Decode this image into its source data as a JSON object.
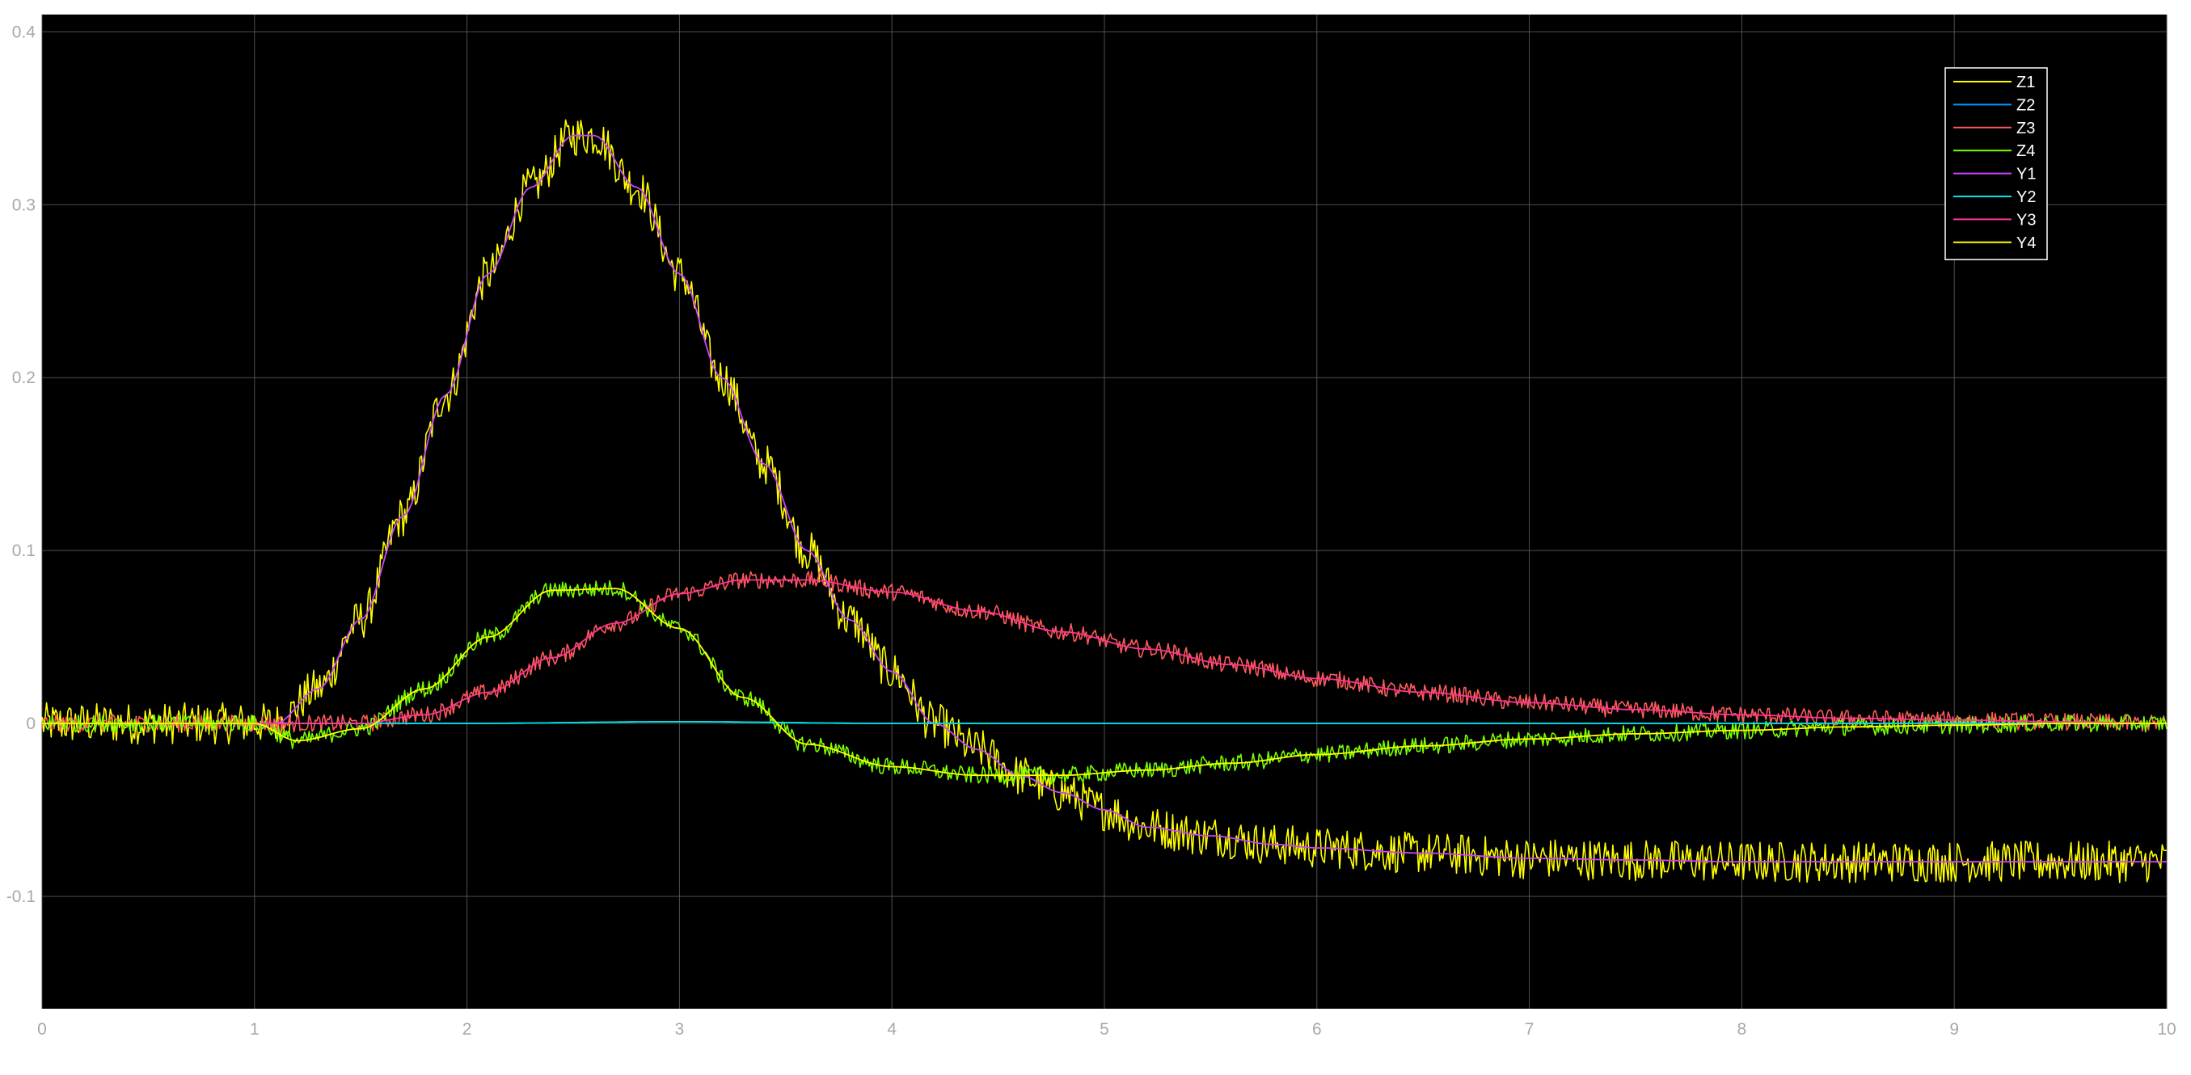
{
  "chart_data": {
    "type": "line",
    "title": "",
    "xlabel": "",
    "ylabel": "",
    "xlim": [
      0,
      10
    ],
    "ylim": [
      -0.165,
      0.41
    ],
    "grid": true,
    "legend_position": "top-right",
    "background_color": "#000000",
    "grid_color": "#505050",
    "tick_color": "#a8a8a8",
    "x_ticks": [
      0,
      1,
      2,
      3,
      4,
      5,
      6,
      7,
      8,
      9,
      10
    ],
    "x_tick_labels": [
      "0",
      "1",
      "2",
      "3",
      "4",
      "5",
      "6",
      "7",
      "8",
      "9",
      "10"
    ],
    "y_ticks": [
      -0.1,
      0,
      0.1,
      0.2,
      0.3,
      0.4
    ],
    "y_tick_labels": [
      "-0.1",
      "0",
      "0.1",
      "0.2",
      "0.3",
      "0.4"
    ],
    "series": [
      {
        "name": "Z1",
        "color": "#ffff00",
        "noisy": true,
        "x": [
          0,
          0.5,
          1.0,
          1.1,
          1.3,
          1.5,
          1.7,
          1.9,
          2.1,
          2.3,
          2.5,
          2.6,
          2.8,
          3.0,
          3.2,
          3.4,
          3.6,
          3.8,
          4.0,
          4.2,
          4.4,
          4.6,
          4.8,
          5.0,
          5.2,
          5.5,
          5.8,
          6.0,
          6.5,
          7.0,
          7.5,
          8.0,
          8.5,
          9.0,
          9.5,
          10.0
        ],
        "y": [
          0,
          0,
          0,
          0.0,
          0.02,
          0.06,
          0.12,
          0.19,
          0.26,
          0.31,
          0.34,
          0.34,
          0.31,
          0.26,
          0.2,
          0.15,
          0.1,
          0.06,
          0.03,
          0.0,
          -0.015,
          -0.03,
          -0.04,
          -0.05,
          -0.06,
          -0.065,
          -0.07,
          -0.072,
          -0.075,
          -0.078,
          -0.079,
          -0.08,
          -0.08,
          -0.08,
          -0.08,
          -0.08
        ]
      },
      {
        "name": "Z2",
        "color": "#0096ff",
        "noisy": false,
        "x": [
          0,
          1.0,
          2.0,
          3.0,
          4.0,
          5.0,
          6.0,
          7.0,
          8.0,
          9.0,
          10.0
        ],
        "y": [
          0,
          0,
          0,
          0.001,
          0,
          0,
          0,
          0,
          0,
          0,
          0
        ]
      },
      {
        "name": "Z3",
        "color": "#ff5a5a",
        "noisy": true,
        "x": [
          0,
          1.5,
          1.8,
          2.1,
          2.4,
          2.7,
          3.0,
          3.3,
          3.6,
          4.0,
          4.4,
          4.8,
          5.2,
          5.6,
          6.0,
          6.5,
          7.0,
          7.5,
          8.0,
          8.5,
          9.0,
          9.5,
          10.0
        ],
        "y": [
          0,
          0,
          0.005,
          0.018,
          0.038,
          0.058,
          0.075,
          0.083,
          0.083,
          0.076,
          0.065,
          0.053,
          0.043,
          0.034,
          0.026,
          0.018,
          0.012,
          0.008,
          0.005,
          0.003,
          0.002,
          0.001,
          0
        ]
      },
      {
        "name": "Z4",
        "color": "#78ff00",
        "noisy": true,
        "x": [
          0,
          1.0,
          1.2,
          1.5,
          1.8,
          2.1,
          2.4,
          2.7,
          3.0,
          3.3,
          3.6,
          4.0,
          4.4,
          4.8,
          5.2,
          5.6,
          6.0,
          6.5,
          7.0,
          7.5,
          8.0,
          8.5,
          9.0,
          9.5,
          10.0
        ],
        "y": [
          0,
          0,
          -0.01,
          -0.003,
          0.02,
          0.05,
          0.077,
          0.078,
          0.055,
          0.015,
          -0.012,
          -0.025,
          -0.03,
          -0.03,
          -0.027,
          -0.023,
          -0.018,
          -0.013,
          -0.009,
          -0.006,
          -0.004,
          -0.002,
          -0.001,
          0,
          0
        ]
      },
      {
        "name": "Y1",
        "color": "#cc44ff",
        "noisy": false,
        "x": [
          0,
          0.5,
          1.0,
          1.1,
          1.3,
          1.5,
          1.7,
          1.9,
          2.1,
          2.3,
          2.5,
          2.6,
          2.8,
          3.0,
          3.2,
          3.4,
          3.6,
          3.8,
          4.0,
          4.2,
          4.4,
          4.6,
          4.8,
          5.0,
          5.2,
          5.5,
          5.8,
          6.0,
          6.5,
          7.0,
          7.5,
          8.0,
          8.5,
          9.0,
          9.5,
          10.0
        ],
        "y": [
          0,
          0,
          0,
          0.0,
          0.02,
          0.06,
          0.12,
          0.19,
          0.26,
          0.31,
          0.34,
          0.34,
          0.31,
          0.26,
          0.2,
          0.15,
          0.1,
          0.06,
          0.03,
          0.0,
          -0.015,
          -0.03,
          -0.04,
          -0.05,
          -0.06,
          -0.065,
          -0.07,
          -0.072,
          -0.075,
          -0.078,
          -0.079,
          -0.08,
          -0.08,
          -0.08,
          -0.08,
          -0.08
        ]
      },
      {
        "name": "Y2",
        "color": "#00e5e5",
        "noisy": false,
        "x": [
          0,
          1.0,
          2.0,
          3.0,
          4.0,
          5.0,
          6.0,
          7.0,
          8.0,
          9.0,
          10.0
        ],
        "y": [
          0,
          0,
          0,
          0.001,
          0,
          0,
          0,
          0,
          0,
          0,
          0
        ]
      },
      {
        "name": "Y3",
        "color": "#ff3399",
        "noisy": false,
        "x": [
          0,
          1.5,
          1.8,
          2.1,
          2.4,
          2.7,
          3.0,
          3.3,
          3.6,
          4.0,
          4.4,
          4.8,
          5.2,
          5.6,
          6.0,
          6.5,
          7.0,
          7.5,
          8.0,
          8.5,
          9.0,
          9.5,
          10.0
        ],
        "y": [
          0,
          0,
          0.005,
          0.018,
          0.038,
          0.058,
          0.075,
          0.083,
          0.083,
          0.076,
          0.065,
          0.053,
          0.043,
          0.034,
          0.026,
          0.018,
          0.012,
          0.008,
          0.005,
          0.003,
          0.002,
          0.001,
          0
        ]
      },
      {
        "name": "Y4",
        "color": "#ffff00",
        "noisy": false,
        "x": [
          0,
          1.0,
          1.2,
          1.5,
          1.8,
          2.1,
          2.4,
          2.7,
          3.0,
          3.3,
          3.6,
          4.0,
          4.4,
          4.8,
          5.2,
          5.6,
          6.0,
          6.5,
          7.0,
          7.5,
          8.0,
          8.5,
          9.0,
          9.5,
          10.0
        ],
        "y": [
          0,
          0,
          -0.01,
          -0.003,
          0.02,
          0.05,
          0.077,
          0.078,
          0.055,
          0.015,
          -0.012,
          -0.025,
          -0.03,
          -0.03,
          -0.027,
          -0.023,
          -0.018,
          -0.013,
          -0.009,
          -0.006,
          -0.004,
          -0.002,
          -0.001,
          0,
          0
        ]
      }
    ]
  }
}
